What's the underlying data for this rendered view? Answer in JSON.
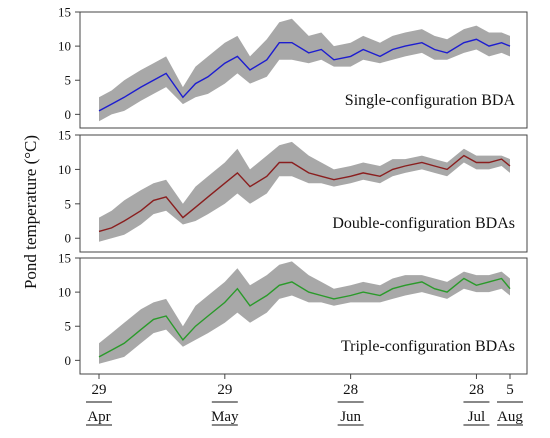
{
  "ylabel": "Pond temperature (°C)",
  "colors": {
    "band": "#a8a8a8",
    "frame": "#444444",
    "blue": "#1d1dd0",
    "red": "#8a1e1e",
    "green": "#2a9a2a"
  },
  "date_ticks": [
    {
      "day": "29",
      "month": "Apr"
    },
    {
      "day": "29",
      "month": "May"
    },
    {
      "day": "28",
      "month": "Jun"
    },
    {
      "day": "28",
      "month": "Jul"
    },
    {
      "day": "5",
      "month": "Aug"
    }
  ],
  "chart_data": [
    {
      "type": "line",
      "label": "Single-configuration BDA",
      "color": "blue",
      "ylim": [
        -2,
        15
      ],
      "yticks": [
        "0",
        "5",
        "10",
        "15"
      ],
      "x_axis": "date",
      "series": [
        {
          "x": [
            "Apr 29",
            "May 2",
            "May 5",
            "May 9",
            "May 12",
            "May 15",
            "May 19",
            "May 22",
            "May 25",
            "May 29",
            "Jun 1",
            "Jun 4",
            "Jun 8",
            "Jun 11",
            "Jun 14",
            "Jun 18",
            "Jun 21",
            "Jun 24",
            "Jun 28",
            "Jul 1",
            "Jul 5",
            "Jul 8",
            "Jul 11",
            "Jul 15",
            "Jul 18",
            "Jul 21",
            "Jul 25",
            "Jul 28",
            "Jul 31",
            "Aug 3",
            "Aug 5"
          ],
          "values": [
            0.5,
            1.5,
            2.5,
            4.0,
            5.0,
            6.0,
            2.5,
            4.5,
            5.5,
            7.5,
            8.5,
            6.5,
            8.0,
            10.5,
            10.5,
            9.0,
            9.5,
            8.0,
            8.5,
            9.5,
            8.5,
            9.5,
            10.0,
            10.5,
            9.5,
            9.0,
            10.5,
            11.0,
            10.0,
            10.5,
            10.0
          ],
          "upper": [
            2.5,
            3.5,
            5.0,
            6.5,
            7.5,
            8.5,
            4.0,
            7.0,
            8.5,
            10.5,
            11.5,
            8.5,
            11.0,
            13.5,
            14.0,
            11.5,
            12.0,
            10.0,
            10.5,
            11.5,
            10.5,
            11.5,
            12.0,
            12.5,
            11.5,
            11.0,
            12.5,
            13.0,
            12.0,
            12.0,
            11.5
          ],
          "lower": [
            -1.0,
            0.0,
            0.5,
            2.0,
            3.0,
            4.0,
            1.5,
            2.5,
            3.0,
            4.5,
            6.0,
            4.5,
            5.5,
            8.0,
            8.0,
            7.5,
            8.0,
            7.0,
            7.0,
            8.0,
            7.5,
            8.0,
            8.5,
            9.0,
            8.0,
            8.0,
            9.0,
            9.5,
            8.5,
            9.0,
            8.5
          ]
        }
      ]
    },
    {
      "type": "line",
      "label": "Double-configuration BDAs",
      "color": "red",
      "ylim": [
        -2,
        15
      ],
      "yticks": [
        "0",
        "5",
        "10",
        "15"
      ],
      "x_axis": "date",
      "series": [
        {
          "x": [
            "Apr 29",
            "May 2",
            "May 5",
            "May 9",
            "May 12",
            "May 15",
            "May 19",
            "May 22",
            "May 25",
            "May 29",
            "Jun 1",
            "Jun 4",
            "Jun 8",
            "Jun 11",
            "Jun 14",
            "Jun 18",
            "Jun 21",
            "Jun 24",
            "Jun 28",
            "Jul 1",
            "Jul 5",
            "Jul 8",
            "Jul 11",
            "Jul 15",
            "Jul 18",
            "Jul 21",
            "Jul 25",
            "Jul 28",
            "Jul 31",
            "Aug 3",
            "Aug 5"
          ],
          "values": [
            1.0,
            1.5,
            2.5,
            4.0,
            5.5,
            6.0,
            3.0,
            4.5,
            6.0,
            8.0,
            9.5,
            7.5,
            9.0,
            11.0,
            11.0,
            9.5,
            9.0,
            8.5,
            9.0,
            9.5,
            9.0,
            10.0,
            10.5,
            11.0,
            10.5,
            10.0,
            12.0,
            11.0,
            11.0,
            11.5,
            10.5
          ],
          "upper": [
            3.0,
            4.0,
            5.5,
            7.0,
            8.0,
            8.5,
            5.0,
            7.5,
            9.0,
            11.0,
            13.0,
            10.0,
            12.0,
            13.5,
            14.0,
            12.0,
            11.0,
            10.0,
            10.5,
            11.0,
            10.5,
            11.5,
            11.5,
            12.0,
            11.5,
            11.0,
            13.0,
            12.0,
            12.0,
            12.0,
            11.5
          ],
          "lower": [
            -0.5,
            0.0,
            0.5,
            2.0,
            3.5,
            4.0,
            2.0,
            2.5,
            3.5,
            5.0,
            6.5,
            5.0,
            6.5,
            9.0,
            9.0,
            8.0,
            8.0,
            7.5,
            8.0,
            8.5,
            8.0,
            9.0,
            9.5,
            10.0,
            9.5,
            9.0,
            11.0,
            10.0,
            10.0,
            10.5,
            9.5
          ]
        }
      ]
    },
    {
      "type": "line",
      "label": "Triple-configuration BDAs",
      "color": "green",
      "ylim": [
        -2,
        15
      ],
      "yticks": [
        "0",
        "5",
        "10",
        "15"
      ],
      "x_axis": "date",
      "series": [
        {
          "x": [
            "Apr 29",
            "May 2",
            "May 5",
            "May 9",
            "May 12",
            "May 15",
            "May 19",
            "May 22",
            "May 25",
            "May 29",
            "Jun 1",
            "Jun 4",
            "Jun 8",
            "Jun 11",
            "Jun 14",
            "Jun 18",
            "Jun 21",
            "Jun 24",
            "Jun 28",
            "Jul 1",
            "Jul 5",
            "Jul 8",
            "Jul 11",
            "Jul 15",
            "Jul 18",
            "Jul 21",
            "Jul 25",
            "Jul 28",
            "Jul 31",
            "Aug 3",
            "Aug 5"
          ],
          "values": [
            0.5,
            1.5,
            2.5,
            4.5,
            6.0,
            6.5,
            3.0,
            5.0,
            6.5,
            8.5,
            10.5,
            8.0,
            9.5,
            11.0,
            11.5,
            10.0,
            9.5,
            9.0,
            9.5,
            10.0,
            9.5,
            10.5,
            11.0,
            11.5,
            10.5,
            10.0,
            12.0,
            11.0,
            11.5,
            12.0,
            10.5
          ],
          "upper": [
            2.5,
            4.0,
            5.5,
            7.5,
            8.5,
            9.0,
            5.0,
            8.0,
            9.5,
            11.5,
            13.5,
            11.0,
            12.5,
            14.0,
            14.5,
            12.5,
            11.5,
            10.5,
            11.0,
            11.5,
            11.0,
            12.0,
            12.5,
            12.5,
            12.0,
            11.5,
            13.0,
            12.5,
            12.5,
            13.0,
            12.0
          ],
          "lower": [
            -0.5,
            0.0,
            0.5,
            2.5,
            4.0,
            4.5,
            2.0,
            3.0,
            4.0,
            5.5,
            7.0,
            5.5,
            7.0,
            9.0,
            9.5,
            8.5,
            8.5,
            8.0,
            8.5,
            8.5,
            8.5,
            9.0,
            9.5,
            10.0,
            9.5,
            9.0,
            10.5,
            10.0,
            10.0,
            10.5,
            9.5
          ]
        }
      ]
    }
  ]
}
